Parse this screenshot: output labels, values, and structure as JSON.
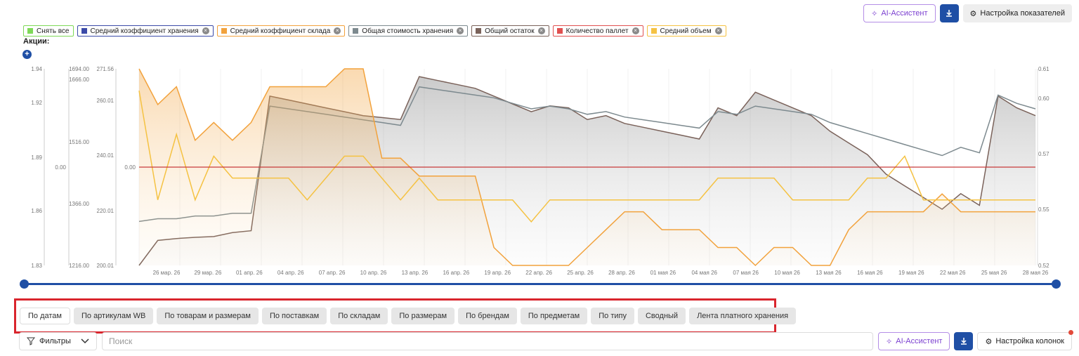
{
  "toolbar": {
    "ai_label": "AI-Ассистент",
    "settings_label": "Настройка показателей",
    "ai_icon": "sparkle-icon",
    "download_icon": "download-icon",
    "settings_icon": "gear-icon"
  },
  "legend": [
    {
      "label": "Снять все",
      "color": "#7ed957",
      "removable": false
    },
    {
      "label": "Средний коэффициент хранения",
      "color": "#3b4aa8",
      "removable": true
    },
    {
      "label": "Средний коэффициент склада",
      "color": "#f2a23c",
      "removable": true
    },
    {
      "label": "Общая стоимость хранения",
      "color": "#7d8a8f",
      "removable": true
    },
    {
      "label": "Общий остаток",
      "color": "#7a625a",
      "removable": true
    },
    {
      "label": "Количество паллет",
      "color": "#e05050",
      "removable": true
    },
    {
      "label": "Средний объем",
      "color": "#f5c242",
      "removable": true
    }
  ],
  "actions_label": "Акции:",
  "chart_data": {
    "type": "line",
    "x_ticks": [
      "26 мар. 26",
      "29 мар. 26",
      "01 апр. 26",
      "04 апр. 26",
      "07 апр. 26",
      "10 апр. 26",
      "13 апр. 26",
      "16 апр. 26",
      "19 апр. 26",
      "22 апр. 26",
      "25 апр. 26",
      "28 апр. 26",
      "01 мая 26",
      "04 мая 26",
      "07 мая 26",
      "10 мая 26",
      "13 мая 26",
      "16 мая 26",
      "19 мая 26",
      "22 мая 26",
      "25 мая 26",
      "28 мая 26"
    ],
    "axes": {
      "warehouse_coef": {
        "ticks": [
          "1.94",
          "1.92",
          "1.89",
          "1.86",
          "1.83"
        ],
        "color": "#f2a23c"
      },
      "storage_coef": {
        "ticks": [
          "0.00"
        ],
        "color": "#3b4aa8"
      },
      "total_stock": {
        "ticks": [
          "1694.00",
          "1666.00",
          "1516.00",
          "1366.00",
          "1216.00"
        ],
        "color": "#666"
      },
      "storage_cost": {
        "ticks": [
          "271.56",
          "260.01",
          "240.01",
          "220.01",
          "200.01"
        ],
        "color": "#666"
      },
      "pallets": {
        "ticks": [
          "0.00"
        ],
        "color": "#e05050"
      },
      "avg_volume": {
        "ticks": [
          "0.61",
          "0.60",
          "0.57",
          "0.55",
          "0.52"
        ],
        "color": "#f5c242"
      }
    },
    "series": [
      {
        "name": "Общий остаток",
        "values": [
          1216,
          1280,
          1285,
          1288,
          1290,
          1300,
          1305,
          1650,
          1640,
          1630,
          1620,
          1610,
          1600,
          1595,
          1590,
          1700,
          1690,
          1680,
          1670,
          1650,
          1630,
          1610,
          1625,
          1620,
          1590,
          1600,
          1580,
          1570,
          1560,
          1550,
          1540,
          1620,
          1600,
          1660,
          1640,
          1620,
          1600,
          1560,
          1530,
          1500,
          1450,
          1420,
          1390,
          1360,
          1400,
          1370,
          1650,
          1620,
          1600
        ]
      },
      {
        "name": "Общая стоимость хранения",
        "values": [
          216,
          217,
          217,
          218,
          218,
          219,
          219,
          258,
          257,
          256,
          255,
          254,
          253,
          252,
          251,
          265,
          264,
          263,
          262,
          261,
          259,
          257,
          258,
          257,
          255,
          256,
          254,
          253,
          252,
          251,
          250,
          256,
          255,
          258,
          257,
          256,
          255,
          252,
          250,
          248,
          246,
          244,
          242,
          240,
          243,
          241,
          262,
          259,
          257
        ]
      },
      {
        "name": "Средний коэффициент склада",
        "values": [
          1.94,
          1.92,
          1.93,
          1.9,
          1.91,
          1.9,
          1.91,
          1.93,
          1.93,
          1.93,
          1.93,
          1.94,
          1.94,
          1.89,
          1.89,
          1.88,
          1.88,
          1.88,
          1.88,
          1.84,
          1.83,
          1.83,
          1.83,
          1.83,
          1.84,
          1.85,
          1.86,
          1.86,
          1.85,
          1.85,
          1.85,
          1.84,
          1.84,
          1.83,
          1.84,
          1.84,
          1.83,
          1.83,
          1.85,
          1.86,
          1.86,
          1.86,
          1.86,
          1.87,
          1.86,
          1.86,
          1.86,
          1.86,
          1.86
        ]
      },
      {
        "name": "Средний объем",
        "values": [
          0.6,
          0.55,
          0.58,
          0.55,
          0.57,
          0.56,
          0.56,
          0.56,
          0.56,
          0.55,
          0.56,
          0.57,
          0.57,
          0.56,
          0.55,
          0.56,
          0.55,
          0.55,
          0.55,
          0.55,
          0.55,
          0.54,
          0.55,
          0.55,
          0.55,
          0.55,
          0.55,
          0.55,
          0.55,
          0.55,
          0.55,
          0.56,
          0.56,
          0.56,
          0.56,
          0.55,
          0.55,
          0.55,
          0.55,
          0.56,
          0.56,
          0.57,
          0.55,
          0.55,
          0.55,
          0.55,
          0.55,
          0.55,
          0.55
        ]
      },
      {
        "name": "Количество паллет",
        "values": [
          0,
          0,
          0,
          0,
          0,
          0,
          0,
          0,
          0,
          0,
          0,
          0,
          0,
          0,
          0,
          0,
          0,
          0,
          0,
          0,
          0,
          0,
          0,
          0,
          0,
          0,
          0,
          0,
          0,
          0,
          0,
          0,
          0,
          0,
          0,
          0,
          0,
          0,
          0,
          0,
          0,
          0,
          0,
          0,
          0,
          0,
          0,
          0,
          0
        ]
      },
      {
        "name": "Средний коэффициент хранения",
        "values": [
          0,
          0,
          0,
          0,
          0,
          0,
          0,
          0,
          0,
          0,
          0,
          0,
          0,
          0,
          0,
          0,
          0,
          0,
          0,
          0,
          0,
          0,
          0,
          0,
          0,
          0,
          0,
          0,
          0,
          0,
          0,
          0,
          0,
          0,
          0,
          0,
          0,
          0,
          0,
          0,
          0,
          0,
          0,
          0,
          0,
          0,
          0,
          0,
          0
        ]
      }
    ]
  },
  "tabs": [
    {
      "label": "По датам",
      "active": true
    },
    {
      "label": "По артикулам WB",
      "active": false
    },
    {
      "label": "По товарам и размерам",
      "active": false
    },
    {
      "label": "По поставкам",
      "active": false
    },
    {
      "label": "По складам",
      "active": false
    },
    {
      "label": "По размерам",
      "active": false
    },
    {
      "label": "По брендам",
      "active": false
    },
    {
      "label": "По предметам",
      "active": false
    },
    {
      "label": "По типу",
      "active": false
    },
    {
      "label": "Сводный",
      "active": false
    },
    {
      "label": "Лента платного хранения",
      "active": false
    }
  ],
  "filters": {
    "label": "Фильтры",
    "icon": "filter-icon",
    "search_placeholder": "Поиск",
    "search_value": ""
  },
  "bottom_toolbar": {
    "ai_label": "AI-Ассистент",
    "settings_label": "Настройка колонок"
  }
}
